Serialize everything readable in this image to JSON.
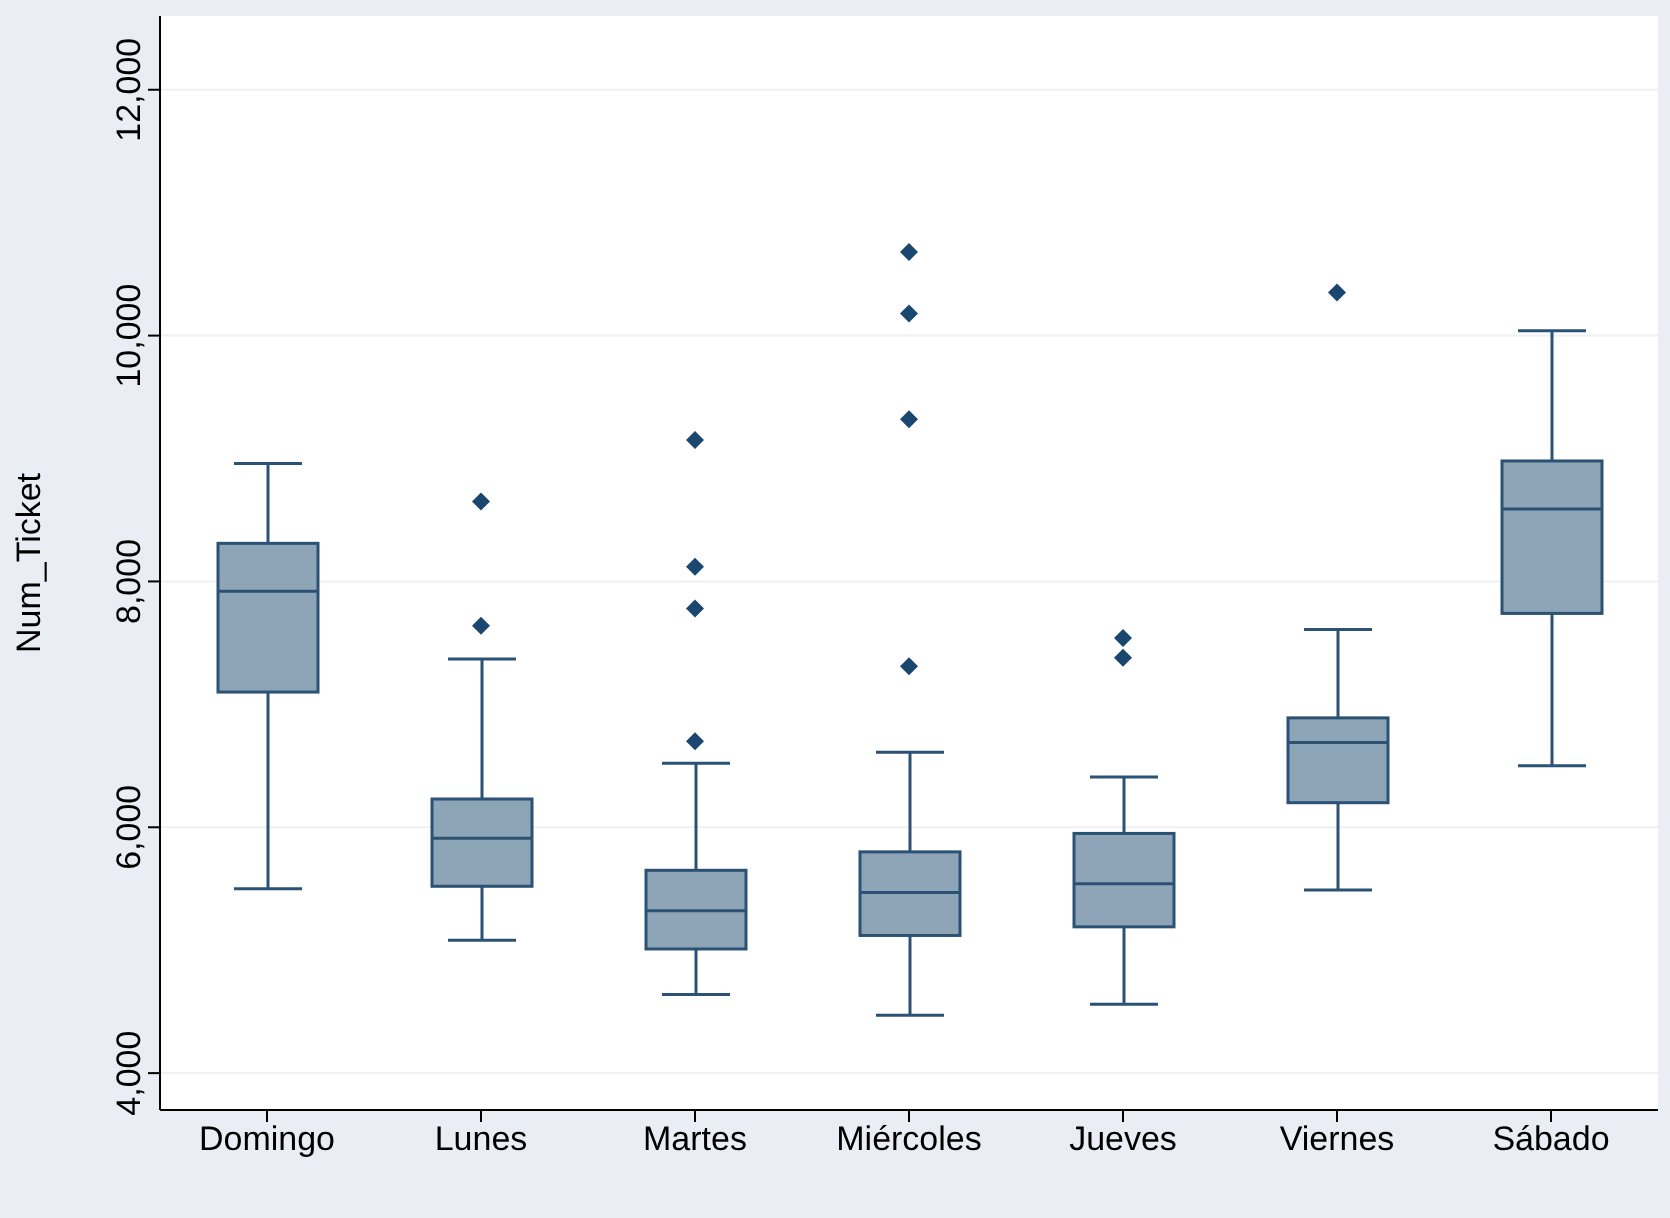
{
  "chart_data": {
    "type": "box",
    "ylabel": "Num_Ticket",
    "categories": [
      "Domingo",
      "Lunes",
      "Martes",
      "Miércoles",
      "Jueves",
      "Viernes",
      "Sábado"
    ],
    "color": "#8ea4b7",
    "boxes": [
      {
        "low": 5500,
        "q1": 7100,
        "median": 7920,
        "q3": 8310,
        "high": 8960
      },
      {
        "low": 5080,
        "q1": 5520,
        "median": 5910,
        "q3": 6230,
        "high": 7370,
        "outliers": [
          7640,
          8650
        ]
      },
      {
        "low": 4640,
        "q1": 5010,
        "median": 5320,
        "q3": 5650,
        "high": 6520,
        "outliers": [
          6700,
          7780,
          8120,
          9150
        ]
      },
      {
        "low": 4470,
        "q1": 5120,
        "median": 5470,
        "q3": 5800,
        "high": 6610,
        "outliers": [
          7310,
          9320,
          10180,
          10680
        ]
      },
      {
        "low": 4560,
        "q1": 5190,
        "median": 5540,
        "q3": 5950,
        "high": 6410,
        "outliers": [
          7380,
          7540
        ]
      },
      {
        "low": 5490,
        "q1": 6200,
        "median": 6690,
        "q3": 6890,
        "high": 7610,
        "outliers": [
          10350
        ]
      },
      {
        "low": 6500,
        "q1": 7740,
        "median": 8590,
        "q3": 8980,
        "high": 10040
      }
    ],
    "ylim": [
      3700,
      12600
    ],
    "yticks": [
      {
        "value": 4000,
        "label": "4,000"
      },
      {
        "value": 6000,
        "label": "6,000"
      },
      {
        "value": 8000,
        "label": "8,000"
      },
      {
        "value": 10000,
        "label": "10,000"
      },
      {
        "value": 12000,
        "label": "12,000"
      }
    ],
    "grid": "y",
    "marker": "diamond"
  }
}
